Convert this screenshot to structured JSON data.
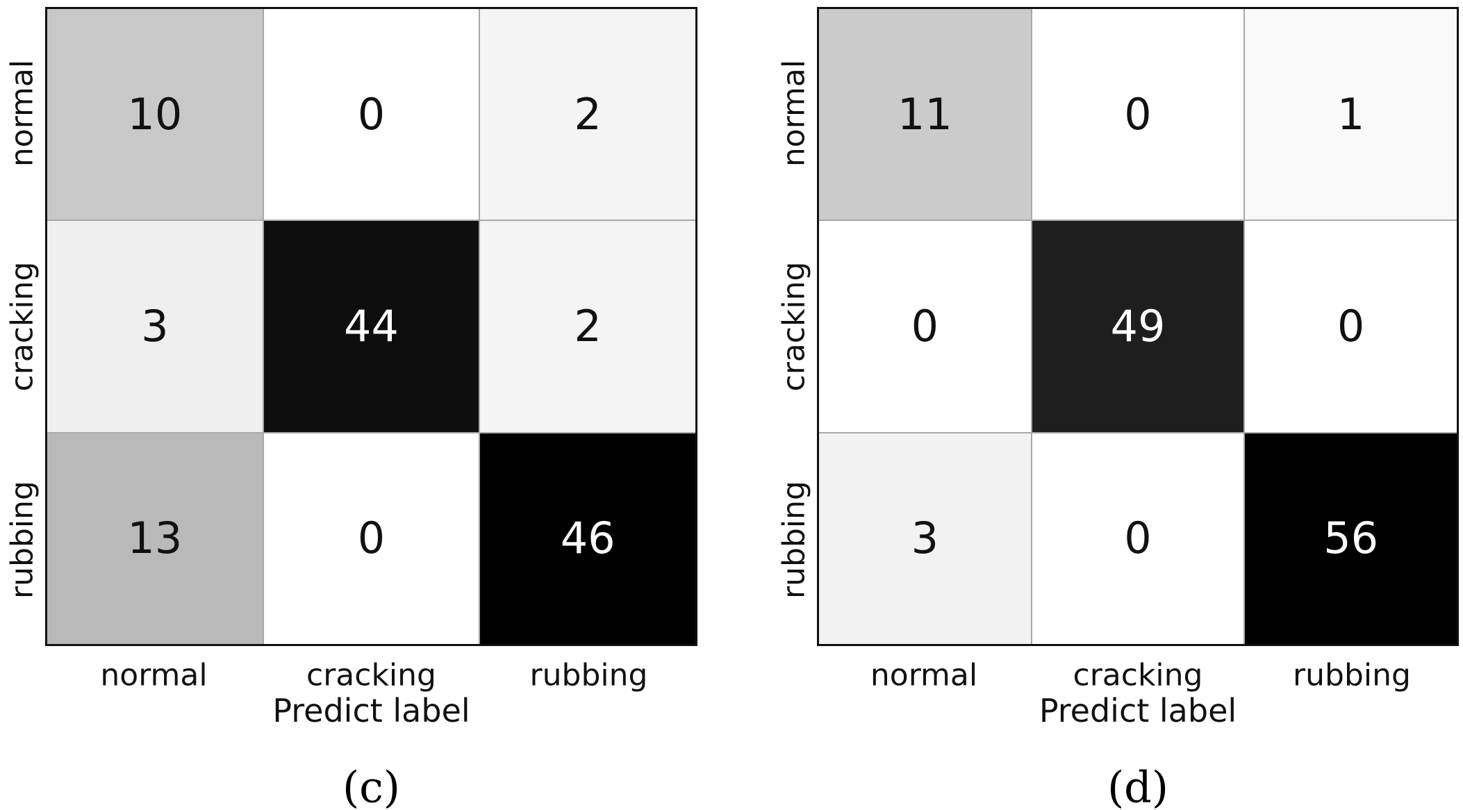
{
  "figure": {
    "background": "#ffffff",
    "spine_color": "#111111",
    "grid_color": "#a8a8a8",
    "tick_text_color": "#111111",
    "dark_cell_text_color": "#ffffff",
    "light_cell_text_color": "#111111"
  },
  "chart_data": [
    {
      "type": "heatmap",
      "subtype": "confusion-matrix",
      "caption": "(c)",
      "xlabel": "Predict label",
      "colormap": "Greys",
      "x_tick_labels": [
        "normal",
        "cracking",
        "rubbing"
      ],
      "y_tick_labels": [
        "normal",
        "cracking",
        "rubbing"
      ],
      "values": [
        [
          10,
          0,
          2
        ],
        [
          3,
          44,
          2
        ],
        [
          13,
          0,
          46
        ]
      ],
      "cell_colors": [
        [
          "#c8c8c8",
          "#ffffff",
          "#f4f4f4"
        ],
        [
          "#efefef",
          "#0e0e0e",
          "#f4f4f4"
        ],
        [
          "#b9b9b9",
          "#ffffff",
          "#000000"
        ]
      ]
    },
    {
      "type": "heatmap",
      "subtype": "confusion-matrix",
      "caption": "(d)",
      "xlabel": "Predict label",
      "colormap": "Greys",
      "x_tick_labels": [
        "normal",
        "cracking",
        "rubbing"
      ],
      "y_tick_labels": [
        "normal",
        "cracking",
        "rubbing"
      ],
      "values": [
        [
          11,
          0,
          1
        ],
        [
          0,
          49,
          0
        ],
        [
          3,
          0,
          56
        ]
      ],
      "cell_colors": [
        [
          "#cbcbcb",
          "#ffffff",
          "#f9f9f9"
        ],
        [
          "#ffffff",
          "#1e1e1e",
          "#ffffff"
        ],
        [
          "#f2f2f2",
          "#ffffff",
          "#000000"
        ]
      ]
    }
  ]
}
